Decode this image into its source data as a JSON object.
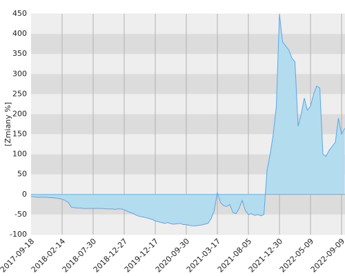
{
  "chart_data": {
    "type": "area",
    "y_label": "[Zmiany %]",
    "categories": [
      "2017-09-18",
      null,
      null,
      null,
      null,
      null,
      null,
      null,
      null,
      null,
      "2018-02-14",
      null,
      null,
      null,
      null,
      null,
      null,
      null,
      null,
      null,
      "2018-07-30",
      null,
      null,
      null,
      null,
      null,
      null,
      null,
      null,
      null,
      "2018-12-27",
      null,
      null,
      null,
      null,
      null,
      null,
      null,
      null,
      null,
      "2019-12-17",
      null,
      null,
      null,
      null,
      null,
      null,
      null,
      null,
      null,
      "2020-09-30",
      null,
      null,
      null,
      null,
      null,
      null,
      null,
      null,
      null,
      "2021-03-17",
      null,
      null,
      null,
      null,
      null,
      null,
      null,
      null,
      null,
      "2021-08-05",
      null,
      null,
      null,
      null,
      null,
      null,
      null,
      null,
      null,
      "2021-12-30",
      null,
      null,
      null,
      null,
      null,
      null,
      null,
      null,
      null,
      "2022-05-09",
      null,
      null,
      null,
      null,
      null,
      null,
      null,
      null,
      null,
      "2022-09-09",
      null
    ],
    "values": [
      -5,
      -6,
      -7,
      -7,
      -7,
      -7,
      -8,
      -8,
      -9,
      -10,
      -12,
      -15,
      -20,
      -32,
      -33,
      -34,
      -34,
      -35,
      -35,
      -35,
      -35,
      -35,
      -35,
      -35,
      -36,
      -36,
      -36,
      -37,
      -36,
      -36,
      -38,
      -42,
      -45,
      -48,
      -52,
      -55,
      -56,
      -58,
      -60,
      -62,
      -66,
      -68,
      -70,
      -72,
      -70,
      -73,
      -74,
      -73,
      -72,
      -75,
      -75,
      -77,
      -78,
      -78,
      -77,
      -76,
      -74,
      -72,
      -60,
      -40,
      5,
      -20,
      -28,
      -30,
      -25,
      -45,
      -48,
      -35,
      -15,
      -40,
      -50,
      -48,
      -52,
      -50,
      -53,
      -50,
      60,
      100,
      150,
      220,
      450,
      380,
      370,
      360,
      340,
      330,
      170,
      200,
      240,
      210,
      220,
      250,
      270,
      265,
      100,
      95,
      110,
      120,
      130,
      190,
      150,
      165
    ],
    "color": "#5aa5e8",
    "fill": "#b3dcee",
    "ylim": [
      -100,
      450
    ],
    "yticks": [
      -100,
      -50,
      0,
      50,
      100,
      150,
      200,
      250,
      300,
      350,
      400,
      450
    ],
    "grid": true
  }
}
